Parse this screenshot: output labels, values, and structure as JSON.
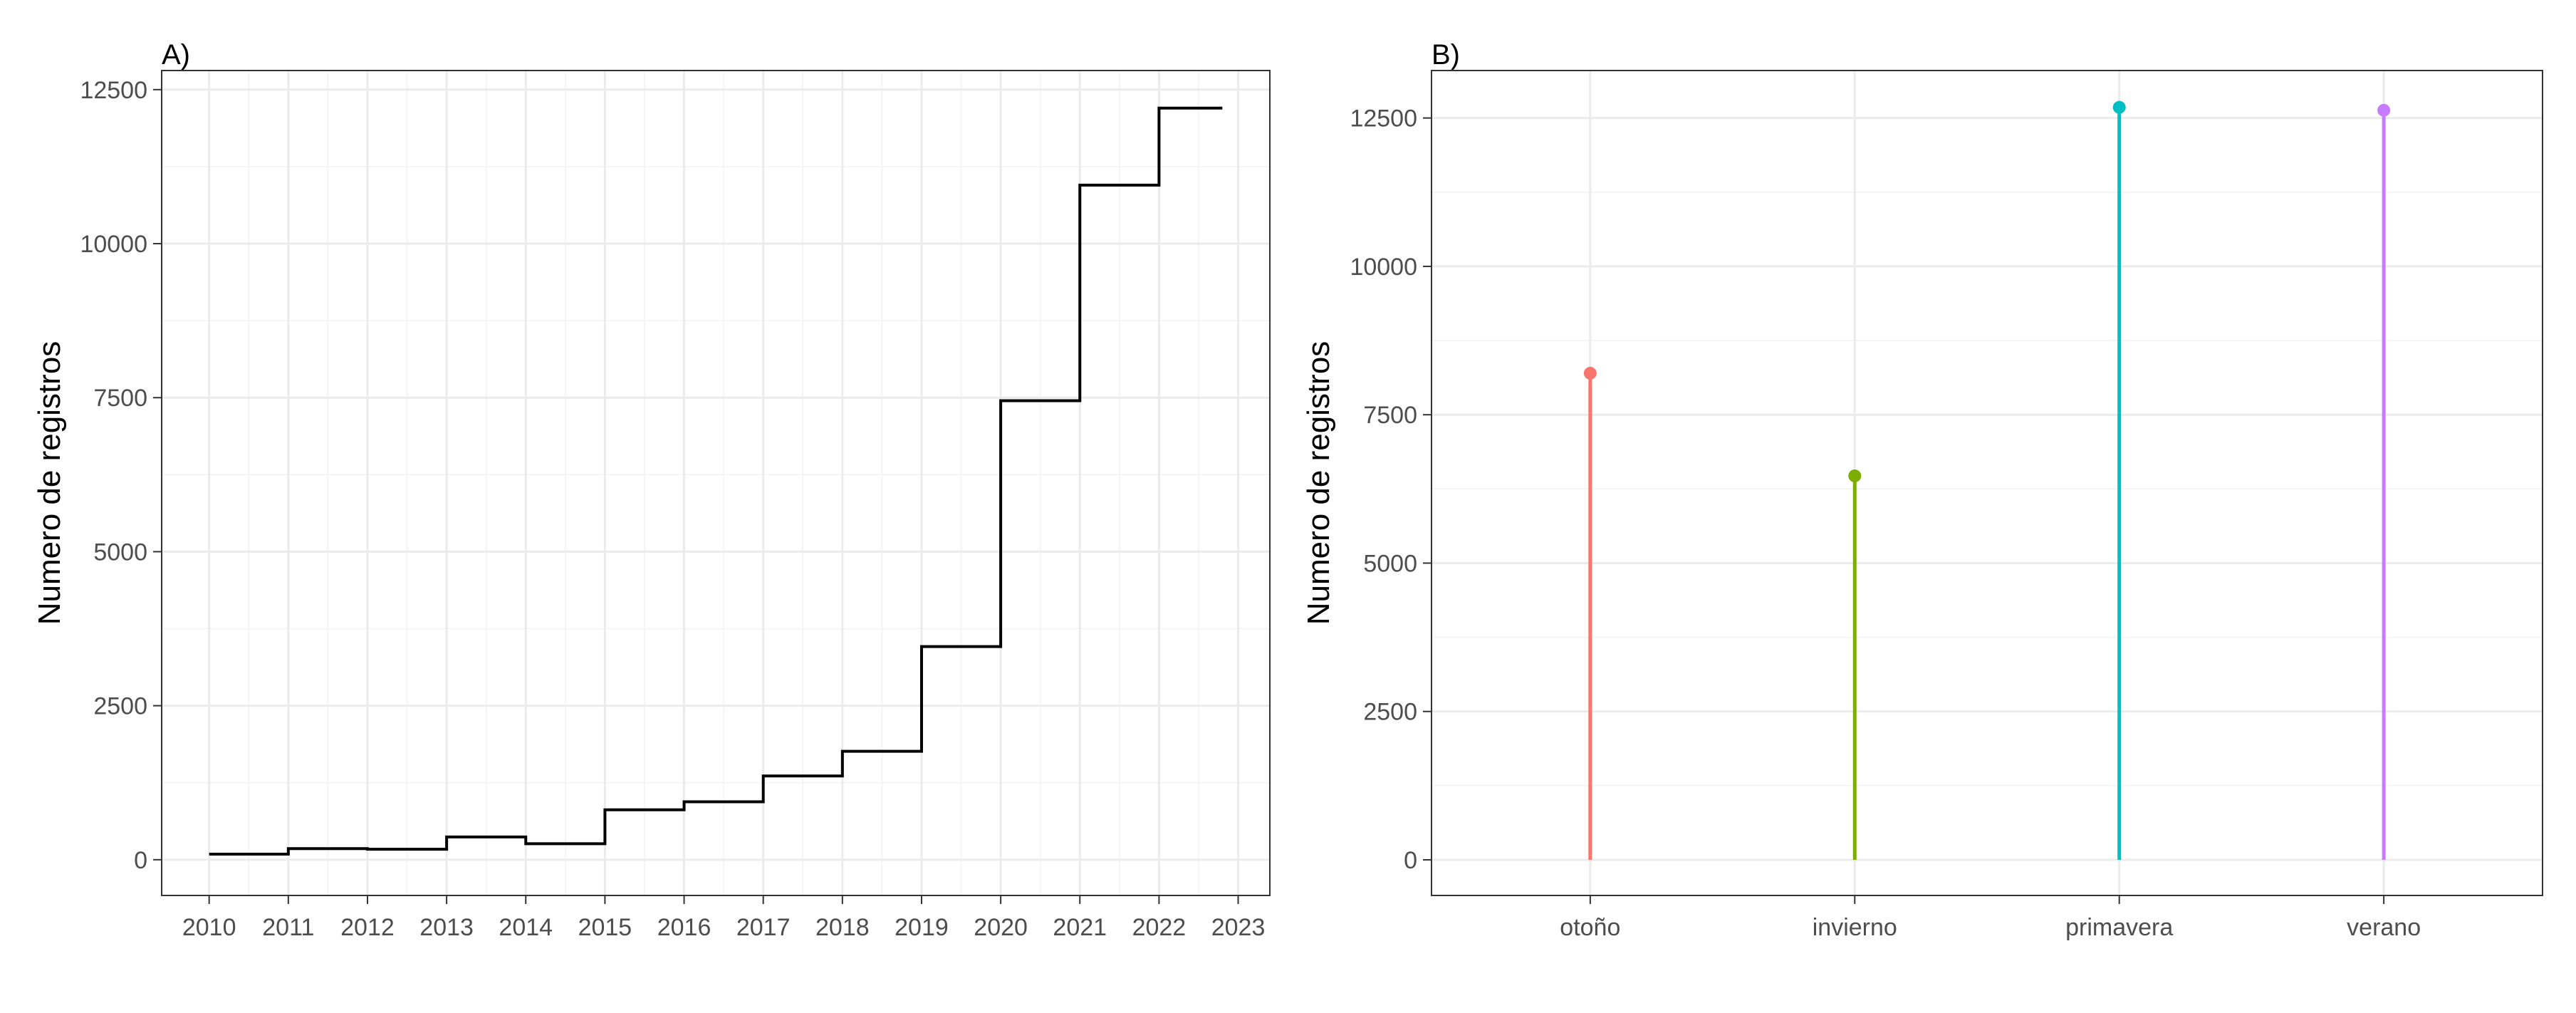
{
  "chart_data": [
    {
      "type": "line",
      "tag": "A)",
      "step": true,
      "xlabel": "",
      "ylabel": "Numero de registros",
      "x_ticks": [
        "2010",
        "2011",
        "2012",
        "2013",
        "2014",
        "2015",
        "2016",
        "2017",
        "2018",
        "2019",
        "2020",
        "2021",
        "2022",
        "2023"
      ],
      "y_ticks": [
        "0",
        "2500",
        "5000",
        "7500",
        "10000",
        "12500"
      ],
      "xlim": [
        2009.4,
        2023.4
      ],
      "ylim": [
        -580,
        12810
      ],
      "grid": true,
      "line_color": "#000000",
      "series": [
        {
          "x": [
            2010,
            2010.95,
            2011,
            2012,
            2013,
            2014,
            2015,
            2016,
            2017,
            2018,
            2019,
            2020,
            2021,
            2022,
            2022.8
          ],
          "y": [
            90,
            90,
            180,
            170,
            370,
            260,
            810,
            940,
            1360,
            1760,
            3460,
            7450,
            10950,
            12200,
            12200
          ]
        }
      ]
    },
    {
      "type": "lollipop",
      "tag": "B)",
      "xlabel": "",
      "ylabel": "Numero de registros",
      "categories": [
        "otoño",
        "invierno",
        "primavera",
        "verano"
      ],
      "values": [
        8200,
        6470,
        12680,
        12630
      ],
      "colors": [
        "#F8766D",
        "#7CAE00",
        "#00BFC4",
        "#C77CFF"
      ],
      "y_ticks": [
        "0",
        "2500",
        "5000",
        "7500",
        "10000",
        "12500"
      ],
      "ylim": [
        -600,
        13300
      ],
      "grid": true
    }
  ]
}
